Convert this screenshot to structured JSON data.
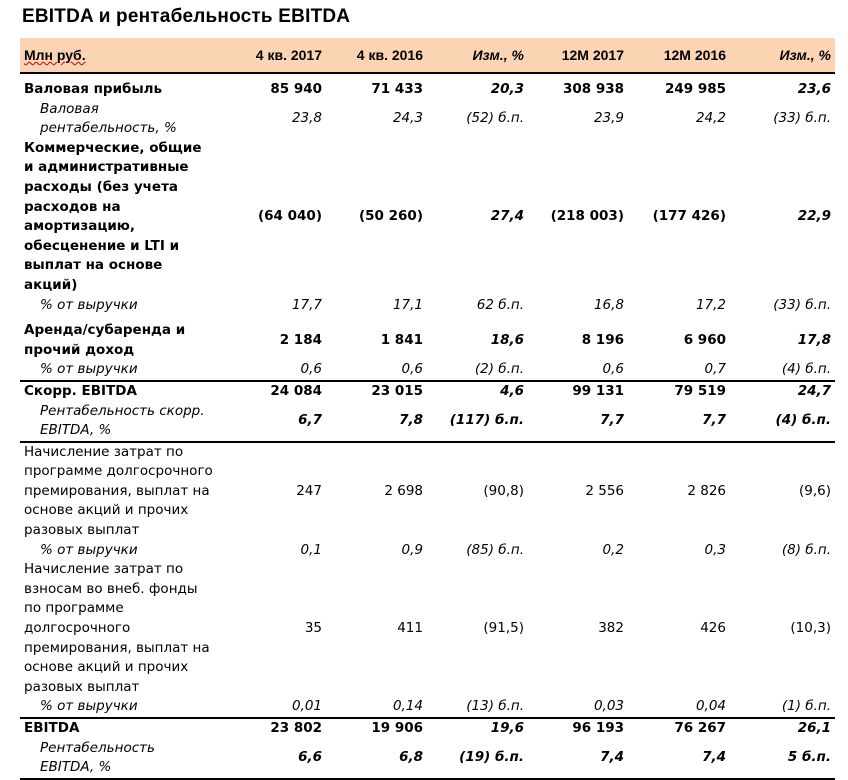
{
  "title": "EBITDA и рентабельность EBITDA",
  "headers": [
    "Млн руб.",
    "4 кв. 2017",
    "4 кв. 2016",
    "Изм., %",
    "12M 2017",
    "12M 2016",
    "Изм., %"
  ],
  "rows": [
    {
      "label": "Валовая прибыль",
      "values": [
        "85 940",
        "71 433",
        "20,3",
        "308 938",
        "249 985",
        "23,6"
      ],
      "style": "b gap"
    },
    {
      "label": "Валовая\nрентабельность, %",
      "values": [
        "23,8",
        "24,3",
        "(52) б.п.",
        "23,9",
        "24,2",
        "(33) б.п."
      ],
      "style": "sub"
    },
    {
      "label": "Коммерческие, общие\nи административные\nрасходы (без учета\nрасходов на\nамортизацию,\nобесценение  и LTI и\nвыплат на основе\nакций)",
      "values": [
        "(64 040)",
        "(50 260)",
        "27,4",
        "(218 003)",
        "(177 426)",
        "22,9"
      ],
      "style": "b"
    },
    {
      "label": "% от выручки",
      "values": [
        "17,7",
        "17,1",
        "62 б.п.",
        "16,8",
        "17,2",
        "(33) б.п."
      ],
      "style": "sub"
    },
    {
      "label": "Аренда/субаренда  и\nпрочий доход",
      "values": [
        "2 184",
        "1 841",
        "18,6",
        "8 196",
        "6 960",
        "17,8"
      ],
      "style": "b gap"
    },
    {
      "label": "% от выручки",
      "values": [
        "0,6",
        "0,6",
        "(2) б.п.",
        "0,6",
        "0,7",
        "(4) б.п."
      ],
      "style": "sub"
    },
    {
      "label": "Скорр. EBITDA",
      "values": [
        "24 084",
        "23 015",
        "4,6",
        "99 131",
        "79 519",
        "24,7"
      ],
      "style": "b top"
    },
    {
      "label": "Рентабельность  скорр.\nEBITDA, %",
      "values": [
        "6,7",
        "7,8",
        "(117) б.п.",
        "7,7",
        "7,7",
        "(4) б.п."
      ],
      "style": "sub bi bot"
    },
    {
      "label": "Начисление затрат по\nпрограмме долгосрочного\nпремирования, выплат на\nоснове акций и прочих\nразовых выплат",
      "values": [
        "247",
        "2 698",
        "(90,8)",
        "2 556",
        "2 826",
        "(9,6)"
      ],
      "style": ""
    },
    {
      "label": "% от выручки",
      "values": [
        "0,1",
        "0,9",
        "(85) б.п.",
        "0,2",
        "0,3",
        "(8) б.п."
      ],
      "style": "sub"
    },
    {
      "label": "Начисление затрат по\nвзносам во внеб. фонды\nпо программе\nдолгосрочного\nпремирования, выплат на\nоснове акций и прочих\nразовых выплат",
      "values": [
        "35",
        "411",
        "(91,5)",
        "382",
        "426",
        "(10,3)"
      ],
      "style": ""
    },
    {
      "label": "% от выручки",
      "values": [
        "0,01",
        "0,14",
        "(13) б.п.",
        "0,03",
        "0,04",
        "(1) б.п."
      ],
      "style": "sub"
    },
    {
      "label": "EBITDA",
      "values": [
        "23 802",
        "19 906",
        "19,6",
        "96 193",
        "76 267",
        "26,1"
      ],
      "style": "b top"
    },
    {
      "label": "Рентабельность\nEBITDA, %",
      "values": [
        "6,6",
        "6,8",
        "(19) б.п.",
        "7,4",
        "7,4",
        "5 б.п."
      ],
      "style": "sub bi bot"
    }
  ]
}
